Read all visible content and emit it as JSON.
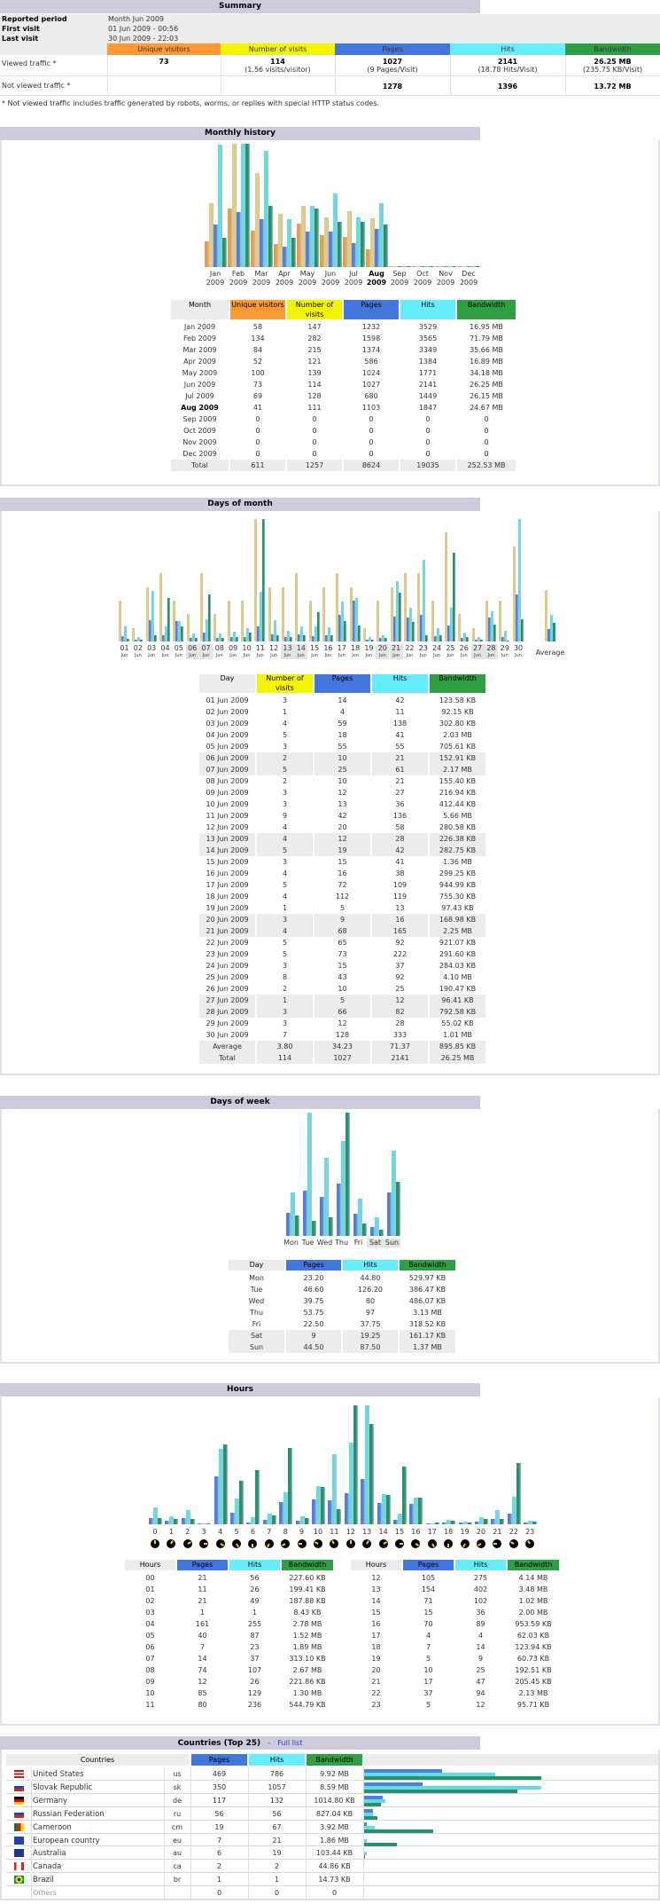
{
  "colors": {
    "unique_visitors": "#ff9933",
    "visits": "#f5f500",
    "pages": "#4477dd",
    "hits": "#66eeff",
    "bandwidth": "#2ea043",
    "section": "#ccccdd",
    "bar_visitors": "#e89d46",
    "bar_visits": "#e3cd85",
    "bar_pages": "#4f7fe0",
    "bar_hits": "#63dbe8",
    "bar_bandwidth": "#23936e"
  },
  "summary": {
    "title": "Summary",
    "info": [
      [
        "Reported period",
        "Month Jun 2009"
      ],
      [
        "First visit",
        "01 Jun 2009 - 00:56"
      ],
      [
        "Last visit",
        "30 Jun 2009 - 22:03"
      ]
    ],
    "headers": [
      "Unique visitors",
      "Number of visits",
      "Pages",
      "Hits",
      "Bandwidth"
    ],
    "viewed": {
      "label": "Viewed traffic *",
      "values": [
        "73",
        "114",
        "1027",
        "2141",
        "26.25 MB"
      ],
      "subs": [
        "",
        "(1.56 visits/visitor)",
        "(9 Pages/Visit)",
        "(18.78 Hits/Visit)",
        "(235.75 KB/Visit)"
      ]
    },
    "not_viewed": {
      "label": "Not viewed traffic *",
      "values": [
        "",
        "",
        "1278",
        "1396",
        "13.72 MB"
      ]
    },
    "footnote": "* Not viewed traffic includes traffic generated by robots, worms, or replies with special HTTP status codes."
  },
  "monthly": {
    "title": "Monthly history",
    "columns": [
      "Month",
      "Unique visitors",
      "Number of visits",
      "Pages",
      "Hits",
      "Bandwidth"
    ],
    "chart_labels": [
      [
        "Jan",
        "2009"
      ],
      [
        "Feb",
        "2009"
      ],
      [
        "Mar",
        "2009"
      ],
      [
        "Apr",
        "2009"
      ],
      [
        "May",
        "2009"
      ],
      [
        "Jun",
        "2009"
      ],
      [
        "Jul",
        "2009"
      ],
      [
        "Aug",
        "2009"
      ],
      [
        "Sep",
        "2009"
      ],
      [
        "Oct",
        "2009"
      ],
      [
        "Nov",
        "2009"
      ],
      [
        "Dec",
        "2009"
      ]
    ],
    "current": "Aug 2009",
    "rows": [
      [
        "Jan 2009",
        "58",
        "147",
        "1232",
        "3529",
        "16.95 MB"
      ],
      [
        "Feb 2009",
        "134",
        "282",
        "1598",
        "3565",
        "71.79 MB"
      ],
      [
        "Mar 2009",
        "84",
        "215",
        "1374",
        "3349",
        "35.66 MB"
      ],
      [
        "Apr 2009",
        "52",
        "121",
        "586",
        "1384",
        "16.89 MB"
      ],
      [
        "May 2009",
        "100",
        "139",
        "1024",
        "1771",
        "34.18 MB"
      ],
      [
        "Jun 2009",
        "73",
        "114",
        "1027",
        "2141",
        "26.25 MB"
      ],
      [
        "Jul 2009",
        "69",
        "128",
        "680",
        "1449",
        "26.15 MB"
      ],
      [
        "Aug 2009",
        "41",
        "111",
        "1103",
        "1847",
        "24.67 MB"
      ],
      [
        "Sep 2009",
        "0",
        "0",
        "0",
        "0",
        "0"
      ],
      [
        "Oct 2009",
        "0",
        "0",
        "0",
        "0",
        "0"
      ],
      [
        "Nov 2009",
        "0",
        "0",
        "0",
        "0",
        "0"
      ],
      [
        "Dec 2009",
        "0",
        "0",
        "0",
        "0",
        "0"
      ]
    ],
    "total": [
      "Total",
      "611",
      "1257",
      "8624",
      "19035",
      "252.53 MB"
    ]
  },
  "days": {
    "title": "Days of month",
    "columns": [
      "Day",
      "Number of visits",
      "Pages",
      "Hits",
      "Bandwidth"
    ],
    "chart_labels": [
      [
        "01",
        "Jun"
      ],
      [
        "02",
        "Jun"
      ],
      [
        "03",
        "Jun"
      ],
      [
        "04",
        "Jun"
      ],
      [
        "05",
        "Jun"
      ],
      [
        "06",
        "Jun"
      ],
      [
        "07",
        "Jun"
      ],
      [
        "08",
        "Jun"
      ],
      [
        "09",
        "Jun"
      ],
      [
        "10",
        "Jun"
      ],
      [
        "11",
        "Jun"
      ],
      [
        "12",
        "Jun"
      ],
      [
        "13",
        "Jun"
      ],
      [
        "14",
        "Jun"
      ],
      [
        "15",
        "Jun"
      ],
      [
        "16",
        "Jun"
      ],
      [
        "17",
        "Jun"
      ],
      [
        "18",
        "Jun"
      ],
      [
        "19",
        "Jun"
      ],
      [
        "20",
        "Jun"
      ],
      [
        "21",
        "Jun"
      ],
      [
        "22",
        "Jun"
      ],
      [
        "23",
        "Jun"
      ],
      [
        "24",
        "Jun"
      ],
      [
        "25",
        "Jun"
      ],
      [
        "26",
        "Jun"
      ],
      [
        "27",
        "Jun"
      ],
      [
        "28",
        "Jun"
      ],
      [
        "29",
        "Jun"
      ],
      [
        "30",
        "Jun"
      ]
    ],
    "weekend": [
      5,
      6,
      12,
      13,
      19,
      20,
      26,
      27
    ],
    "rows": [
      [
        "01 Jun 2009",
        "3",
        "14",
        "42",
        "123.58 KB"
      ],
      [
        "02 Jun 2009",
        "1",
        "4",
        "11",
        "92.15 KB"
      ],
      [
        "03 Jun 2009",
        "4",
        "59",
        "138",
        "302.80 KB"
      ],
      [
        "04 Jun 2009",
        "5",
        "18",
        "41",
        "2.03 MB"
      ],
      [
        "05 Jun 2009",
        "3",
        "55",
        "55",
        "705.61 KB"
      ],
      [
        "06 Jun 2009",
        "2",
        "10",
        "21",
        "152.91 KB"
      ],
      [
        "07 Jun 2009",
        "5",
        "25",
        "61",
        "2.17 MB"
      ],
      [
        "08 Jun 2009",
        "2",
        "10",
        "21",
        "155.40 KB"
      ],
      [
        "09 Jun 2009",
        "3",
        "12",
        "27",
        "216.94 KB"
      ],
      [
        "10 Jun 2009",
        "3",
        "13",
        "36",
        "412.44 KB"
      ],
      [
        "11 Jun 2009",
        "9",
        "42",
        "136",
        "5.66 MB"
      ],
      [
        "12 Jun 2009",
        "4",
        "20",
        "58",
        "280.58 KB"
      ],
      [
        "13 Jun 2009",
        "4",
        "12",
        "28",
        "226.38 KB"
      ],
      [
        "14 Jun 2009",
        "5",
        "19",
        "42",
        "282.75 KB"
      ],
      [
        "15 Jun 2009",
        "3",
        "15",
        "41",
        "1.36 MB"
      ],
      [
        "16 Jun 2009",
        "4",
        "16",
        "38",
        "299.25 KB"
      ],
      [
        "17 Jun 2009",
        "5",
        "72",
        "109",
        "944.99 KB"
      ],
      [
        "18 Jun 2009",
        "4",
        "112",
        "119",
        "755.30 KB"
      ],
      [
        "19 Jun 2009",
        "1",
        "5",
        "13",
        "97.43 KB"
      ],
      [
        "20 Jun 2009",
        "3",
        "9",
        "16",
        "168.98 KB"
      ],
      [
        "21 Jun 2009",
        "4",
        "68",
        "165",
        "2.25 MB"
      ],
      [
        "22 Jun 2009",
        "5",
        "65",
        "92",
        "921.07 KB"
      ],
      [
        "23 Jun 2009",
        "5",
        "73",
        "222",
        "291.60 KB"
      ],
      [
        "24 Jun 2009",
        "3",
        "15",
        "37",
        "284.03 KB"
      ],
      [
        "25 Jun 2009",
        "8",
        "43",
        "92",
        "4.10 MB"
      ],
      [
        "26 Jun 2009",
        "2",
        "10",
        "25",
        "190.47 KB"
      ],
      [
        "27 Jun 2009",
        "1",
        "5",
        "12",
        "96.41 KB"
      ],
      [
        "28 Jun 2009",
        "3",
        "66",
        "82",
        "792.58 KB"
      ],
      [
        "29 Jun 2009",
        "3",
        "12",
        "28",
        "55.02 KB"
      ],
      [
        "30 Jun 2009",
        "7",
        "128",
        "333",
        "1.01 MB"
      ]
    ],
    "average": [
      "Average",
      "3.80",
      "34.23",
      "71.37",
      "895.85 KB"
    ],
    "total": [
      "Total",
      "114",
      "1027",
      "2141",
      "26.25 MB"
    ]
  },
  "dow": {
    "title": "Days of week",
    "columns": [
      "Day",
      "Pages",
      "Hits",
      "Bandwidth"
    ],
    "weekend": [
      5,
      6
    ],
    "rows": [
      [
        "Mon",
        "23.20",
        "44.80",
        "529.97 KB"
      ],
      [
        "Tue",
        "46.60",
        "126.20",
        "386.47 KB"
      ],
      [
        "Wed",
        "39.75",
        "80",
        "486.07 KB"
      ],
      [
        "Thu",
        "53.75",
        "97",
        "3.13 MB"
      ],
      [
        "Fri",
        "22.50",
        "37.75",
        "318.52 KB"
      ],
      [
        "Sat",
        "9",
        "19.25",
        "161.17 KB"
      ],
      [
        "Sun",
        "44.50",
        "87.50",
        "1.37 MB"
      ]
    ]
  },
  "hours": {
    "title": "Hours",
    "columns": [
      "Hours",
      "Pages",
      "Hits",
      "Bandwidth"
    ],
    "chart_labels": [
      "0",
      "1",
      "2",
      "3",
      "4",
      "5",
      "6",
      "7",
      "8",
      "9",
      "10",
      "11",
      "12",
      "13",
      "14",
      "15",
      "16",
      "17",
      "18",
      "19",
      "20",
      "21",
      "22",
      "23"
    ],
    "clock_icon": "clock-icon",
    "rows": [
      [
        "00",
        "21",
        "56",
        "227.60 KB"
      ],
      [
        "01",
        "11",
        "26",
        "199.41 KB"
      ],
      [
        "02",
        "21",
        "49",
        "187.88 KB"
      ],
      [
        "03",
        "1",
        "1",
        "8.43 KB"
      ],
      [
        "04",
        "161",
        "255",
        "2.78 MB"
      ],
      [
        "05",
        "40",
        "87",
        "1.52 MB"
      ],
      [
        "06",
        "7",
        "23",
        "1.89 MB"
      ],
      [
        "07",
        "14",
        "37",
        "313.10 KB"
      ],
      [
        "08",
        "74",
        "107",
        "2.67 MB"
      ],
      [
        "09",
        "12",
        "26",
        "221.86 KB"
      ],
      [
        "10",
        "85",
        "129",
        "1.30 MB"
      ],
      [
        "11",
        "80",
        "236",
        "544.79 KB"
      ],
      [
        "12",
        "105",
        "275",
        "4.14 MB"
      ],
      [
        "13",
        "154",
        "402",
        "3.48 MB"
      ],
      [
        "14",
        "71",
        "102",
        "1.02 MB"
      ],
      [
        "15",
        "15",
        "36",
        "2.00 MB"
      ],
      [
        "16",
        "70",
        "89",
        "953.59 KB"
      ],
      [
        "17",
        "4",
        "4",
        "62.03 KB"
      ],
      [
        "18",
        "7",
        "14",
        "123.94 KB"
      ],
      [
        "19",
        "5",
        "9",
        "60.73 KB"
      ],
      [
        "20",
        "10",
        "25",
        "192.51 KB"
      ],
      [
        "21",
        "17",
        "47",
        "205.45 KB"
      ],
      [
        "22",
        "37",
        "94",
        "2.13 MB"
      ],
      [
        "23",
        "5",
        "12",
        "95.71 KB"
      ]
    ]
  },
  "countries": {
    "title": "Countries (Top 25)",
    "separator": "-",
    "full_list": "Full list",
    "columns": [
      "Countries",
      "Pages",
      "Hits",
      "Bandwidth"
    ],
    "rows": [
      [
        "flag-us-icon",
        "United States",
        "us",
        "469",
        "786",
        "9.92 MB"
      ],
      [
        "flag-sk-icon",
        "Slovak Republic",
        "sk",
        "350",
        "1057",
        "8.59 MB"
      ],
      [
        "flag-de-icon",
        "Germany",
        "de",
        "117",
        "132",
        "1014.80 KB"
      ],
      [
        "flag-ru-icon",
        "Russian Federation",
        "ru",
        "56",
        "56",
        "827.04 KB"
      ],
      [
        "flag-cm-icon",
        "Cameroon",
        "cm",
        "19",
        "67",
        "3.92 MB"
      ],
      [
        "flag-eu-icon",
        "European country",
        "eu",
        "7",
        "21",
        "1.86 MB"
      ],
      [
        "flag-au-icon",
        "Australia",
        "au",
        "6",
        "19",
        "103.44 KB"
      ],
      [
        "flag-ca-icon",
        "Canada",
        "ca",
        "2",
        "2",
        "44.86 KB"
      ],
      [
        "flag-br-icon",
        "Brazil",
        "br",
        "1",
        "1",
        "14.73 KB"
      ]
    ],
    "others": [
      "Others",
      "0",
      "0",
      "0"
    ]
  }
}
